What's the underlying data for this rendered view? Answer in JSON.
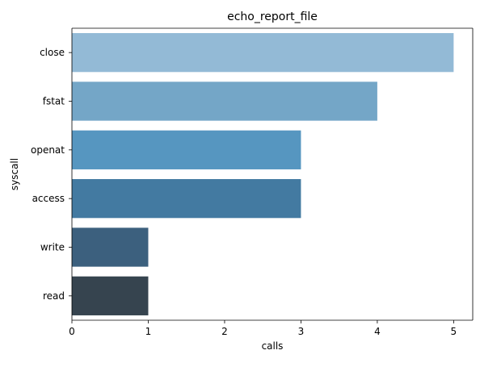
{
  "chart_data": {
    "type": "bar",
    "orientation": "horizontal",
    "title": "echo_report_file",
    "xlabel": "calls",
    "ylabel": "syscall",
    "categories": [
      "close",
      "fstat",
      "openat",
      "access",
      "write",
      "read"
    ],
    "values": [
      5,
      4,
      3,
      3,
      1,
      1
    ],
    "xlim": [
      0,
      5.25
    ],
    "xticks": [
      0,
      1,
      2,
      3,
      4,
      5
    ],
    "grid": false,
    "legend": "none",
    "colors": [
      "#93bad6",
      "#74a6c7",
      "#5696c0",
      "#437aa1",
      "#3c607e",
      "#36444f"
    ]
  }
}
